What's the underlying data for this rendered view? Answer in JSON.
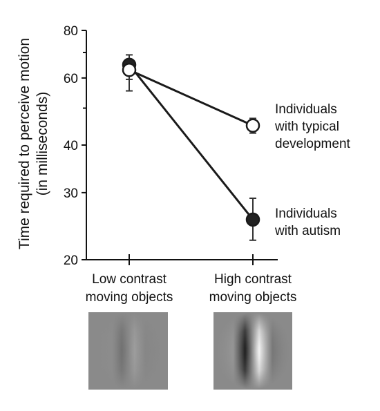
{
  "chart_data": {
    "type": "line",
    "ylabel_line1": "Time required to perceive motion",
    "ylabel_line2": "(in milliseconds)",
    "y_scale": "log",
    "ylim": [
      20,
      80
    ],
    "yticks": [
      {
        "value": 80,
        "label": "80"
      },
      {
        "value": 60,
        "label": "60"
      },
      {
        "value": 40,
        "label": "40"
      },
      {
        "value": 30,
        "label": "30"
      },
      {
        "value": 20,
        "label": "20"
      }
    ],
    "y_minor_ticks": [
      70,
      50
    ],
    "categories": [
      {
        "line1": "Low contrast",
        "line2": "moving objects"
      },
      {
        "line1": "High contrast",
        "line2": "moving objects"
      }
    ],
    "series": [
      {
        "label_lines": [
          "Individuals",
          "with autism"
        ],
        "marker": "filled",
        "values": [
          65,
          25.5
        ],
        "err_low": [
          59.5,
          22.5
        ],
        "err_high": [
          69,
          29
        ]
      },
      {
        "label_lines": [
          "Individuals",
          "with typical",
          "development"
        ],
        "marker": "open",
        "values": [
          63,
          45
        ],
        "err_low": [
          55.5,
          43
        ],
        "err_high": [
          67,
          47
        ]
      }
    ],
    "grid": false,
    "stimuli": [
      "low-contrast-gabor",
      "high-contrast-gabor"
    ],
    "colors": {
      "line": "#1a1a1a",
      "filled_marker": "#222222",
      "open_marker": "#ffffff",
      "stimulus_bg": "#8a8a8a"
    }
  }
}
